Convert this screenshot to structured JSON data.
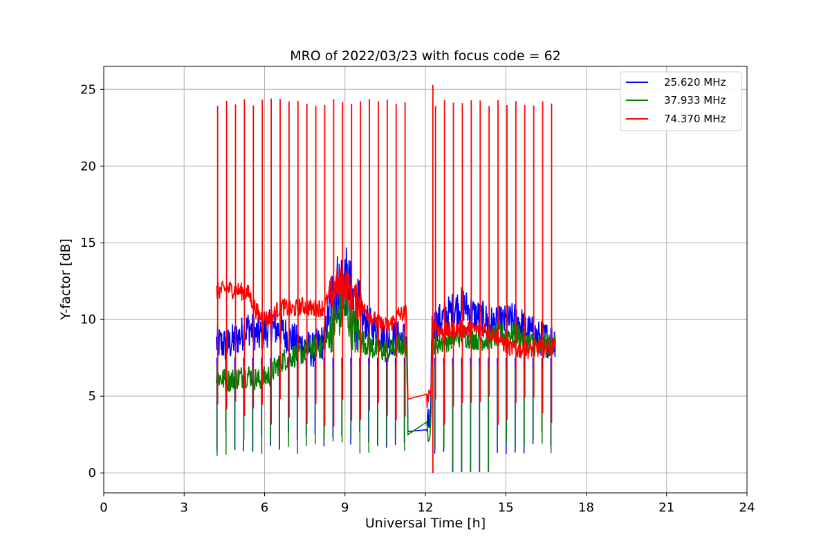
{
  "chart_data": {
    "type": "line",
    "title": "MRO of 2022/03/23 with focus code = 62",
    "xlabel": "Universal Time [h]",
    "ylabel": "Y-factor [dB]",
    "xlim": [
      0,
      24
    ],
    "ylim": [
      -1.3,
      26.5
    ],
    "xticks": [
      0,
      3,
      6,
      9,
      12,
      15,
      18,
      21,
      24
    ],
    "yticks": [
      0,
      5,
      10,
      15,
      20,
      25
    ],
    "grid": true,
    "legend_position": "top-right",
    "series": [
      {
        "name": "25.620 MHz",
        "color": "#0000ff",
        "points": [
          [
            4.2,
            8.5
          ],
          [
            4.6,
            8.3
          ],
          [
            5.0,
            8.8
          ],
          [
            5.4,
            9.5
          ],
          [
            5.8,
            8.9
          ],
          [
            6.2,
            9.5
          ],
          [
            6.6,
            9.3
          ],
          [
            7.0,
            8.7
          ],
          [
            7.4,
            8.3
          ],
          [
            7.8,
            8.0
          ],
          [
            8.2,
            8.6
          ],
          [
            8.6,
            12.0
          ],
          [
            9.0,
            12.6
          ],
          [
            9.4,
            10.5
          ],
          [
            9.8,
            9.8
          ],
          [
            10.2,
            9.3
          ],
          [
            10.6,
            8.8
          ],
          [
            11.0,
            8.8
          ],
          [
            11.3,
            8.8
          ],
          [
            11.35,
            2.7
          ],
          [
            12.05,
            2.85
          ],
          [
            12.2,
            3.5
          ],
          [
            12.25,
            9.5
          ],
          [
            12.6,
            10.0
          ],
          [
            13.0,
            10.6
          ],
          [
            13.4,
            11.0
          ],
          [
            13.8,
            10.3
          ],
          [
            14.2,
            10.0
          ],
          [
            14.6,
            9.6
          ],
          [
            15.0,
            9.8
          ],
          [
            15.4,
            10.0
          ],
          [
            15.8,
            9.3
          ],
          [
            16.2,
            8.8
          ],
          [
            16.6,
            8.7
          ],
          [
            16.85,
            8.7
          ]
        ]
      },
      {
        "name": "37.933 MHz",
        "color": "#008000",
        "points": [
          [
            4.2,
            6.3
          ],
          [
            4.6,
            6.0
          ],
          [
            5.0,
            6.2
          ],
          [
            5.4,
            6.4
          ],
          [
            5.8,
            6.0
          ],
          [
            6.2,
            6.4
          ],
          [
            6.6,
            7.3
          ],
          [
            7.0,
            7.6
          ],
          [
            7.4,
            7.8
          ],
          [
            7.8,
            8.2
          ],
          [
            8.2,
            8.2
          ],
          [
            8.6,
            9.8
          ],
          [
            9.0,
            10.8
          ],
          [
            9.4,
            9.0
          ],
          [
            9.8,
            8.4
          ],
          [
            10.2,
            8.0
          ],
          [
            10.6,
            7.9
          ],
          [
            11.0,
            8.3
          ],
          [
            11.3,
            8.4
          ],
          [
            11.35,
            2.5
          ],
          [
            12.05,
            2.6
          ],
          [
            12.2,
            3.0
          ],
          [
            12.25,
            8.5
          ],
          [
            12.6,
            8.5
          ],
          [
            13.0,
            8.8
          ],
          [
            13.4,
            9.0
          ],
          [
            13.8,
            8.8
          ],
          [
            14.2,
            8.7
          ],
          [
            14.6,
            8.9
          ],
          [
            15.0,
            9.1
          ],
          [
            15.4,
            9.0
          ],
          [
            15.8,
            8.6
          ],
          [
            16.2,
            8.2
          ],
          [
            16.6,
            8.3
          ],
          [
            16.85,
            8.5
          ]
        ]
      },
      {
        "name": "74.370 MHz",
        "color": "#ff0000",
        "points": [
          [
            4.2,
            11.8
          ],
          [
            4.6,
            12.0
          ],
          [
            5.0,
            11.9
          ],
          [
            5.4,
            11.7
          ],
          [
            5.8,
            10.2
          ],
          [
            6.2,
            10.0
          ],
          [
            6.6,
            10.9
          ],
          [
            7.0,
            10.6
          ],
          [
            7.4,
            10.9
          ],
          [
            7.8,
            10.7
          ],
          [
            8.2,
            10.8
          ],
          [
            8.6,
            12.0
          ],
          [
            9.0,
            12.4
          ],
          [
            9.4,
            11.2
          ],
          [
            9.8,
            10.5
          ],
          [
            10.2,
            9.8
          ],
          [
            10.6,
            9.5
          ],
          [
            11.0,
            10.3
          ],
          [
            11.3,
            10.4
          ],
          [
            11.35,
            4.8
          ],
          [
            12.05,
            4.7
          ],
          [
            12.2,
            5.0
          ],
          [
            12.25,
            9.8
          ],
          [
            12.6,
            9.2
          ],
          [
            13.0,
            9.3
          ],
          [
            13.4,
            9.4
          ],
          [
            13.8,
            9.3
          ],
          [
            14.2,
            9.4
          ],
          [
            14.6,
            9.0
          ],
          [
            15.0,
            8.3
          ],
          [
            15.4,
            8.0
          ],
          [
            15.8,
            8.0
          ],
          [
            16.2,
            8.1
          ],
          [
            16.6,
            8.2
          ],
          [
            16.85,
            8.3
          ]
        ]
      }
    ]
  }
}
